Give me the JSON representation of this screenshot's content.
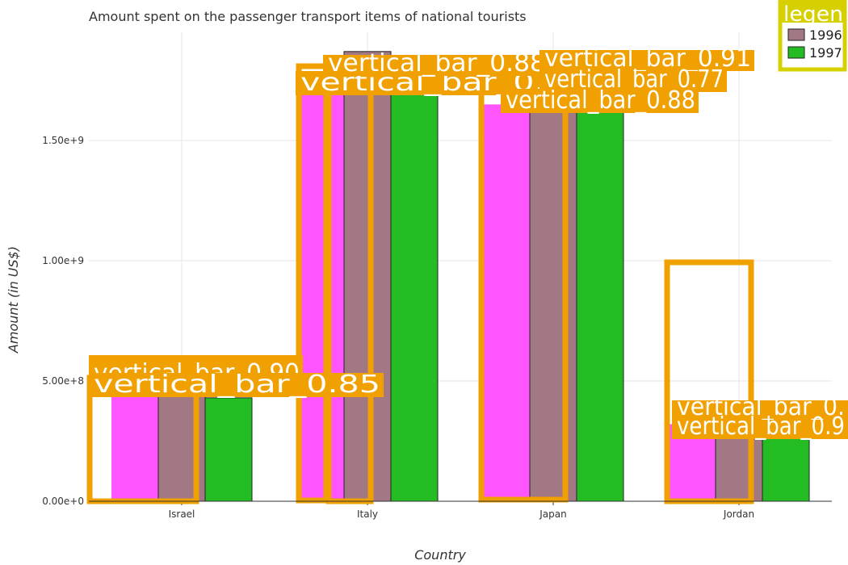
{
  "chart_data": {
    "type": "bar",
    "title": "Amount spent on the passenger transport items of national tourists",
    "xlabel": "Country",
    "ylabel": "Amount (in US$)",
    "categories": [
      "Israel",
      "Italy",
      "Japan",
      "Jordan"
    ],
    "series": [
      {
        "name": "1996",
        "color": "#a27884",
        "values": [
          440000000,
          1870000000,
          1670000000,
          283000000
        ]
      },
      {
        "name": "1997",
        "color": "#23bd23",
        "values": [
          430000000,
          1690000000,
          1630000000,
          289000000
        ]
      }
    ],
    "extra_bars": {
      "color": "#ff55ff",
      "values": [
        490000000,
        1690000000,
        1650000000,
        320000000
      ]
    },
    "yticks": [
      "0.00e+0",
      "5.00e+8",
      "1.00e+9",
      "1.50e+9"
    ],
    "ylim": [
      0,
      1950000000
    ],
    "grid": true,
    "legend": {
      "title": "legen",
      "placement": "top-right"
    },
    "annotation_color": "#f0a000",
    "annotations": [
      "vertical_bar_0.90",
      "vertical_bar_0.85",
      "vertical_bar_0.89",
      "vertical_bar_0.88",
      "vertical_bar_0.91",
      "vertical_bar_0.77",
      "vertical_bar_0.88",
      "vertical_bar_0.",
      "vertical_bar_0.9"
    ]
  }
}
